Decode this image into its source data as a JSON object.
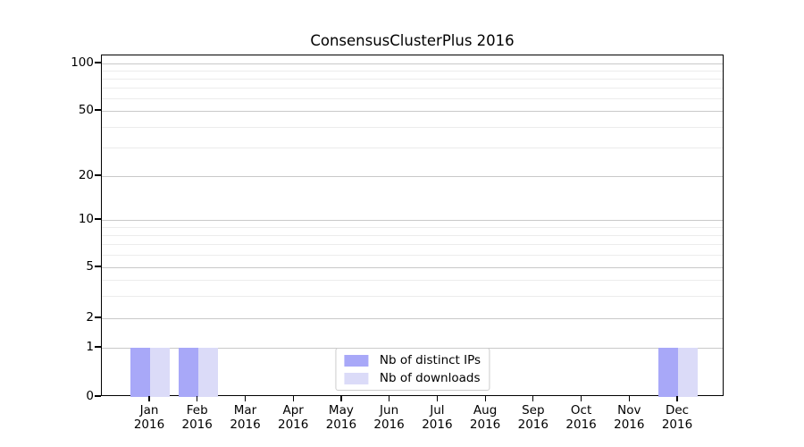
{
  "chart_data": {
    "type": "bar",
    "title": "ConsensusClusterPlus 2016",
    "categories": [
      "Jan 2016",
      "Feb 2016",
      "Mar 2016",
      "Apr 2016",
      "May 2016",
      "Jun 2016",
      "Jul 2016",
      "Aug 2016",
      "Sep 2016",
      "Oct 2016",
      "Nov 2016",
      "Dec 2016"
    ],
    "series": [
      {
        "name": "Nb of distinct IPs",
        "color": "#a8a8f8",
        "values": [
          1,
          1,
          0,
          0,
          0,
          0,
          0,
          0,
          0,
          0,
          0,
          1
        ]
      },
      {
        "name": "Nb of downloads",
        "color": "#dbdbf8",
        "values": [
          1,
          1,
          0,
          0,
          0,
          0,
          0,
          0,
          0,
          0,
          0,
          1
        ]
      }
    ],
    "yticks": [
      0,
      1,
      2,
      5,
      10,
      20,
      50,
      100
    ],
    "y_minor_gridlines": [
      3,
      4,
      6,
      7,
      8,
      9,
      30,
      40,
      60,
      70,
      80,
      90
    ],
    "ylim": [
      0,
      110
    ],
    "yscale": "log-with-zero-baseline",
    "grid": true,
    "legend_position": "lower center",
    "xlabel": "",
    "ylabel": ""
  },
  "colors": {
    "major_grid": "#c9c9c9",
    "minor_grid": "#ececec",
    "axis": "#000000",
    "background": "#ffffff",
    "legend_border": "#cccccc"
  }
}
